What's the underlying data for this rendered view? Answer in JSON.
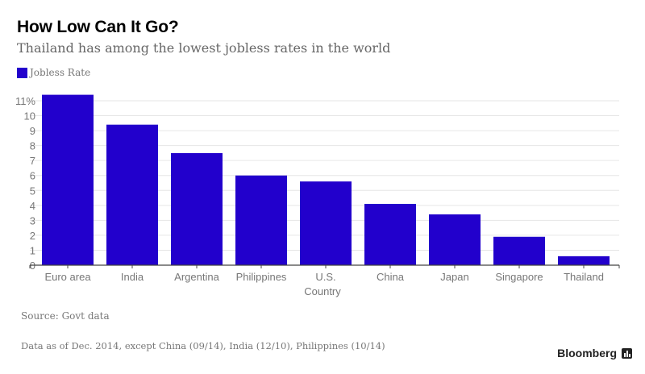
{
  "chart_data": {
    "type": "bar",
    "title": "How Low Can It Go?",
    "subtitle": "Thailand has among the lowest jobless rates in the world",
    "legend": [
      {
        "name": "Jobless Rate",
        "color": "#2200cc"
      }
    ],
    "legend_position": "top-left",
    "xlabel": "Country",
    "ylabel": "",
    "categories": [
      "Euro area",
      "India",
      "Argentina",
      "Philippines",
      "U.S.",
      "China",
      "Japan",
      "Singapore",
      "Thailand"
    ],
    "series": [
      {
        "name": "Jobless Rate",
        "values": [
          11.4,
          9.4,
          7.5,
          6.0,
          5.6,
          4.1,
          3.4,
          1.9,
          0.6
        ]
      }
    ],
    "yticks": [
      {
        "value": 0,
        "label": "0"
      },
      {
        "value": 1,
        "label": "1"
      },
      {
        "value": 2,
        "label": "2"
      },
      {
        "value": 3,
        "label": "3"
      },
      {
        "value": 4,
        "label": "4"
      },
      {
        "value": 5,
        "label": "5"
      },
      {
        "value": 6,
        "label": "6"
      },
      {
        "value": 7,
        "label": "7"
      },
      {
        "value": 8,
        "label": "8"
      },
      {
        "value": 9,
        "label": "9"
      },
      {
        "value": 10,
        "label": "10"
      },
      {
        "value": 11,
        "label": "11%"
      }
    ],
    "ylim": [
      0,
      11
    ],
    "grid": true,
    "bar_color": "#2200cc"
  },
  "footer": {
    "source": "Source: Govt data",
    "note": "Data as of Dec. 2014, except China (09/14), India (12/10), Philippines (10/14)",
    "brand": "Bloomberg"
  }
}
